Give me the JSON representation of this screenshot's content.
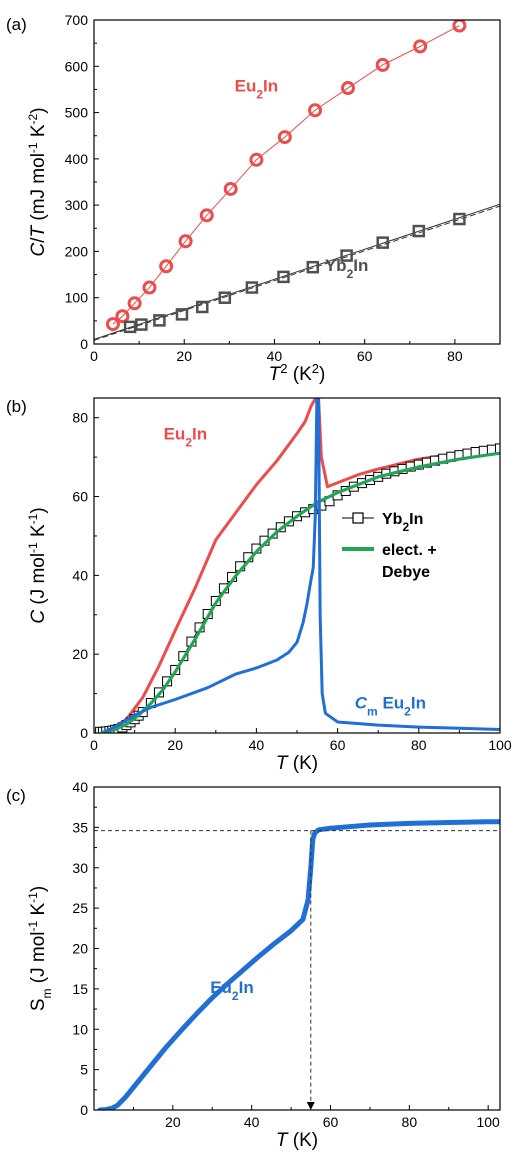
{
  "colors": {
    "red": "#ef4b4b",
    "dark": "#505050",
    "green": "#22a556",
    "blue": "#1f6fd6",
    "axis": "#000000"
  },
  "chart_data": [
    {
      "id": "a",
      "type": "scatter",
      "panel_label": "(a)",
      "xlabel_html": "<tspan font-style='italic'>T</tspan><tspan baseline-shift='super' font-size='13'>2</tspan><tspan> (K</tspan><tspan baseline-shift='super' font-size='13'>2</tspan><tspan>)</tspan>",
      "ylabel_html": "<tspan font-style='italic'>C</tspan><tspan>/</tspan><tspan font-style='italic'>T</tspan><tspan> (mJ mol</tspan><tspan baseline-shift='super' font-size='12'>-1</tspan><tspan> K</tspan><tspan baseline-shift='super' font-size='12'>-2</tspan><tspan>)</tspan>",
      "xlim": [
        0,
        90
      ],
      "ylim": [
        0,
        700
      ],
      "xticks": [
        0,
        20,
        40,
        60,
        80
      ],
      "yticks": [
        0,
        100,
        200,
        300,
        400,
        500,
        600,
        700
      ],
      "series": [
        {
          "name": "Eu2In",
          "marker": "circle",
          "color": "#ef4b4b",
          "x": [
            4.2,
            6.3,
            9.0,
            12.3,
            16.0,
            20.3,
            25.0,
            30.3,
            36.0,
            42.3,
            49.0,
            56.3,
            64.0,
            72.3,
            81.0
          ],
          "y": [
            43,
            60,
            88,
            122,
            168,
            222,
            278,
            335,
            398,
            447,
            505,
            553,
            603,
            643,
            688
          ]
        },
        {
          "name": "Yb2In",
          "marker": "square",
          "color": "#505050",
          "x": [
            8,
            10.5,
            14.5,
            19.5,
            24.0,
            29.0,
            35.0,
            42.0,
            48.5,
            56.0,
            64.0,
            72.0,
            81.0
          ],
          "y": [
            37,
            42,
            51,
            64,
            80,
            100,
            122,
            145,
            166,
            191,
            219,
            244,
            270
          ]
        }
      ],
      "fit_lines": [
        {
          "x": [
            0,
            90
          ],
          "y": [
            8,
            298
          ],
          "dash": "6,3"
        },
        {
          "x": [
            0,
            90
          ],
          "y": [
            10,
            302
          ],
          "dash": ""
        }
      ],
      "annotations": [
        {
          "html": "Eu<tspan baseline-shift='sub' font-size='12'>2</tspan>In",
          "x": 36,
          "y": 545,
          "color": "#ef4b4b"
        },
        {
          "html": "Yb<tspan baseline-shift='sub' font-size='12'>2</tspan>In",
          "x": 56,
          "y": 158,
          "color": "#505050"
        }
      ]
    },
    {
      "id": "b",
      "type": "line",
      "panel_label": "(b)",
      "xlabel_html": "<tspan font-style='italic'>T</tspan><tspan> (K)</tspan>",
      "ylabel_html": "<tspan font-style='italic'>C</tspan><tspan> (J mol</tspan><tspan baseline-shift='super' font-size='12'>-1</tspan><tspan> K</tspan><tspan baseline-shift='super' font-size='12'>-1</tspan><tspan>)</tspan>",
      "xlim": [
        0,
        100
      ],
      "ylim": [
        0,
        85
      ],
      "xticks": [
        0,
        20,
        40,
        60,
        80,
        100
      ],
      "yticks": [
        0,
        20,
        40,
        60,
        80
      ],
      "series": [
        {
          "name": "Eu2In",
          "color": "#ef4b4b",
          "x": [
            2,
            5,
            8,
            12,
            16,
            20,
            25,
            30,
            35,
            40,
            45,
            50,
            52,
            53.5,
            54.6,
            55.3,
            56,
            57.5,
            60,
            65,
            70,
            80,
            90,
            100
          ],
          "y": [
            0.3,
            1.5,
            3.5,
            9,
            17,
            26,
            37,
            49,
            56,
            63,
            69,
            76,
            79,
            83,
            85,
            85,
            70,
            62.5,
            63.5,
            65.5,
            67,
            69.5,
            71,
            72
          ]
        },
        {
          "name": "Yb2In",
          "marker": "square",
          "color": "#000000",
          "x": [
            1.5,
            2.2,
            3,
            3.8,
            4.5,
            5.2,
            6,
            7,
            8,
            9,
            10,
            11,
            12,
            14,
            16,
            18,
            20,
            22,
            24,
            26,
            28,
            30,
            32,
            34,
            36,
            38,
            40,
            42,
            44,
            46,
            48,
            50,
            52,
            54,
            56,
            58,
            60,
            62,
            64,
            66,
            68,
            70,
            72,
            74,
            76,
            78,
            80,
            82,
            84,
            86,
            88,
            90,
            92,
            94,
            96,
            98,
            100
          ],
          "y": [
            0.3,
            0.3,
            0.4,
            0.5,
            0.6,
            0.8,
            1.0,
            1.4,
            2.0,
            2.7,
            3.5,
            4.4,
            5.3,
            7.6,
            10.3,
            13.1,
            16.0,
            19.5,
            23.2,
            26.8,
            30.2,
            33.5,
            36.7,
            39.6,
            42.3,
            44.6,
            46.8,
            48.8,
            50.6,
            52.2,
            53.7,
            55.0,
            56.0,
            56.8,
            57.7,
            58.8,
            60.3,
            61.4,
            62.5,
            63.4,
            64.2,
            65.0,
            65.8,
            66.4,
            67.0,
            67.6,
            68.1,
            68.6,
            69.1,
            69.6,
            70.1,
            70.5,
            70.9,
            71.3,
            71.6,
            71.9,
            72.2
          ]
        },
        {
          "name": "elect. + Debye",
          "color": "#22a556",
          "x": [
            2,
            5,
            8,
            11,
            14,
            17,
            20,
            25,
            30,
            35,
            40,
            45,
            50,
            55,
            60,
            70,
            80,
            90,
            100
          ],
          "y": [
            0.2,
            0.8,
            2.2,
            4.5,
            7.5,
            11,
            15.5,
            24,
            33,
            40,
            46,
            51,
            55,
            58.5,
            61,
            65,
            67.5,
            69.5,
            71
          ]
        },
        {
          "name": "Cm Eu2In",
          "color": "#1f6fd6",
          "x": [
            3,
            6,
            10,
            14,
            20,
            28,
            35,
            40,
            45,
            48,
            50,
            51.5,
            52.5,
            53.3,
            54,
            54.5,
            54.9,
            55.3,
            55.7,
            56.2,
            57,
            60,
            70,
            80,
            90,
            100
          ],
          "y": [
            0.5,
            2,
            4.5,
            6.5,
            8.5,
            11.5,
            15,
            16.5,
            18.5,
            20.5,
            23,
            28,
            33,
            38,
            42,
            55,
            85,
            85,
            30,
            10,
            5,
            2.8,
            2,
            1.5,
            1.2,
            0.9
          ]
        }
      ],
      "legend": [
        {
          "label": "Yb2In",
          "html": "Yb<tspan baseline-shift='sub' font-size='12'>2</tspan>In",
          "kind": "square-line",
          "color": "#000000"
        },
        {
          "label": "elect. +",
          "label2": "Debye",
          "kind": "line",
          "color": "#22a556"
        }
      ],
      "annotations": [
        {
          "html": "Eu<tspan baseline-shift='sub' font-size='12'>2</tspan>In",
          "x": 22.5,
          "y": 74.5,
          "color": "#ef4b4b"
        },
        {
          "html": "<tspan font-style='italic'>C</tspan><tspan baseline-shift='sub' font-size='12'>m</tspan><tspan> Eu</tspan><tspan baseline-shift='sub' font-size='12'>2</tspan><tspan>In</tspan>",
          "x": 73,
          "y": 6.2,
          "color": "#1f6fd6"
        }
      ]
    },
    {
      "id": "c",
      "type": "line",
      "panel_label": "(c)",
      "xlabel_html": "<tspan font-style='italic'>T</tspan><tspan> (K)</tspan>",
      "ylabel_html": "<tspan>S</tspan><tspan baseline-shift='sub' font-size='12'>m</tspan><tspan> (J mol</tspan><tspan baseline-shift='super' font-size='12'>-1</tspan><tspan> K</tspan><tspan baseline-shift='super' font-size='12'>-1</tspan><tspan>)</tspan>",
      "xlim": [
        0,
        103
      ],
      "ylim": [
        0,
        40
      ],
      "xticks": [
        20,
        40,
        60,
        80,
        100
      ],
      "yticks": [
        0,
        5,
        10,
        15,
        20,
        25,
        30,
        35,
        40
      ],
      "series": [
        {
          "name": "Eu2In",
          "color": "#1f6fd6",
          "x": [
            1.5,
            3,
            4.5,
            6,
            8,
            10,
            14,
            18,
            22,
            26,
            30,
            34,
            38,
            42,
            46,
            50,
            53,
            54.3,
            55,
            55.5,
            56,
            57,
            60,
            70,
            80,
            90,
            100,
            103
          ],
          "y": [
            0,
            0.05,
            0.2,
            0.6,
            1.6,
            2.8,
            5.2,
            7.6,
            9.8,
            11.9,
            13.9,
            15.7,
            17.4,
            19.1,
            20.7,
            22.2,
            23.6,
            26,
            30,
            33.5,
            34.3,
            34.7,
            34.9,
            35.3,
            35.5,
            35.6,
            35.7,
            35.7
          ]
        }
      ],
      "guides": [
        {
          "x": [
            0,
            103
          ],
          "y": [
            34.6,
            34.6
          ]
        },
        {
          "x": [
            55,
            55
          ],
          "y": [
            34.6,
            0
          ],
          "arrow": true
        }
      ],
      "annotations": [
        {
          "html": "Eu<tspan baseline-shift='sub' font-size='12'>2</tspan>In",
          "x": 35,
          "y": 14.5,
          "color": "#1f6fd6"
        }
      ]
    }
  ]
}
